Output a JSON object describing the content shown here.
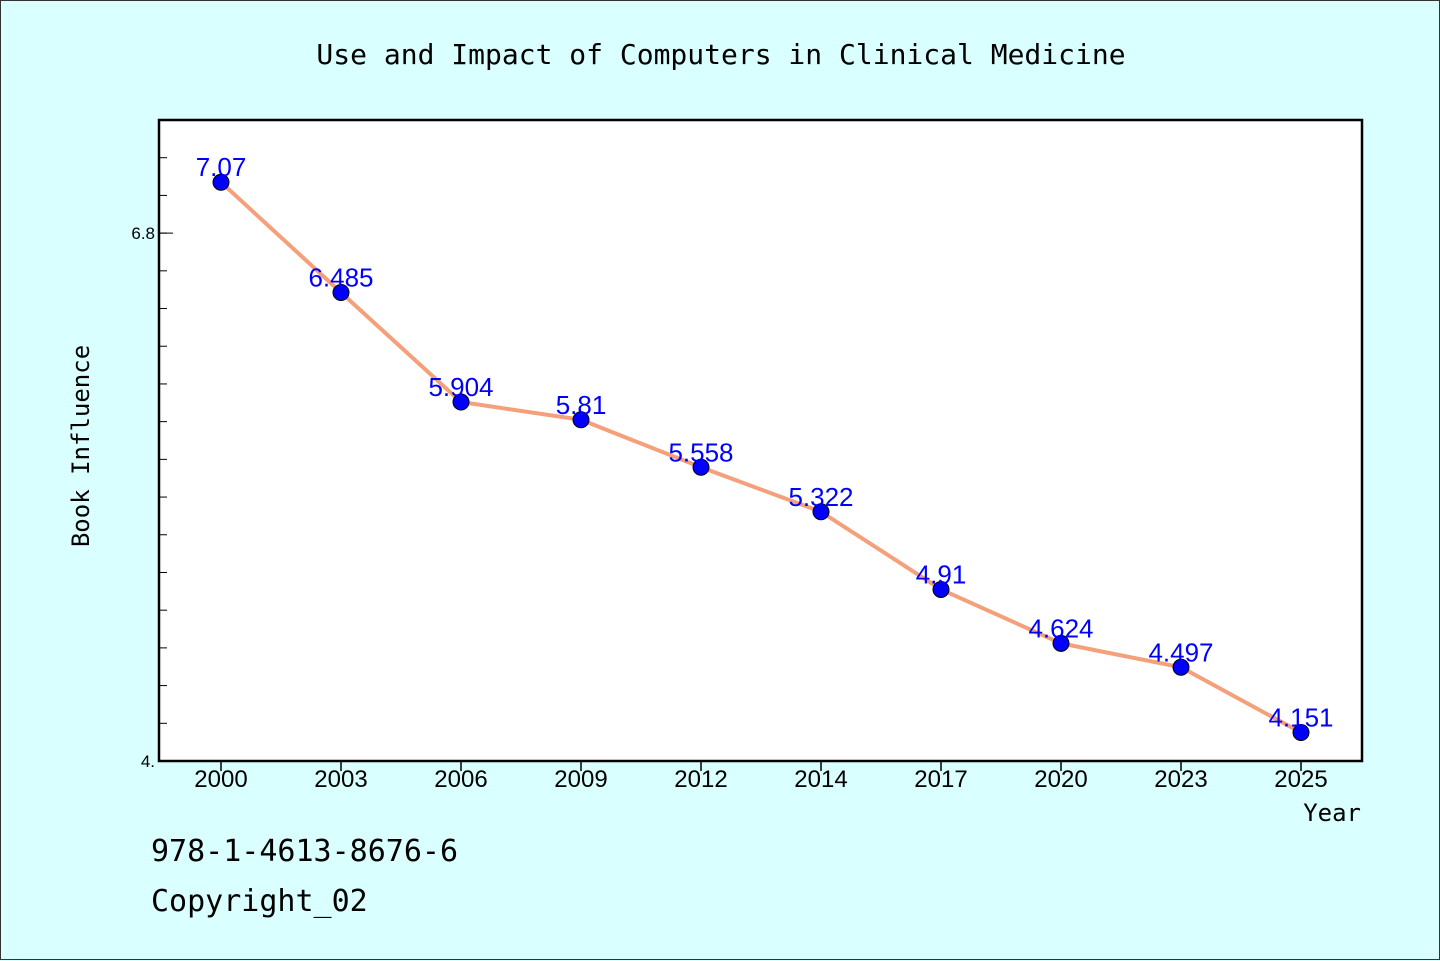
{
  "footer": {
    "isbn": "978-1-4613-8676-6",
    "copyright": "Copyright_02"
  },
  "chart_data": {
    "type": "line",
    "title": "Use and Impact of Computers in Clinical Medicine",
    "xlabel": "Year",
    "ylabel": "Book Influence",
    "categories": [
      "2000",
      "2003",
      "2006",
      "2009",
      "2012",
      "2014",
      "2017",
      "2020",
      "2023",
      "2025"
    ],
    "series": [
      {
        "values": [
          7.07,
          6.485,
          5.904,
          5.81,
          5.558,
          5.322,
          4.91,
          4.624,
          4.497,
          4.151
        ],
        "labels": [
          "7.07",
          "6.485",
          "5.904",
          "5.81",
          "5.558",
          "5.322",
          "4.91",
          "4.624",
          "4.497",
          "4.151"
        ]
      }
    ],
    "ylim": [
      4.0,
      7.4
    ],
    "yticks": [
      {
        "value": 4.0,
        "label": "4."
      },
      {
        "value": 6.8,
        "label": "6.8"
      }
    ],
    "y_minor_step": 0.2,
    "grid": false,
    "legend": "none",
    "colors": {
      "background": "#d9ffff",
      "plot_background": "#ffffff",
      "line": "#f4a07a",
      "marker": "#0000ff",
      "data_label": "#0000ff"
    }
  }
}
